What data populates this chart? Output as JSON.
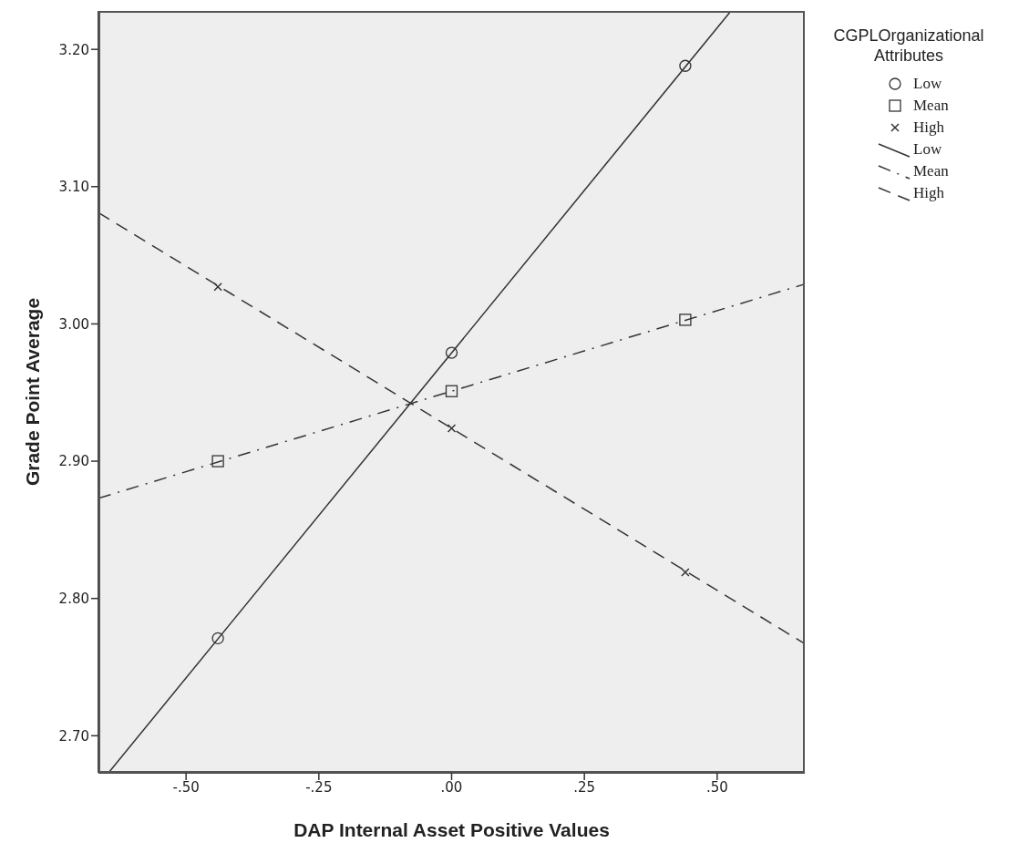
{
  "chart_data": {
    "type": "scatter",
    "xlabel": "DAP Internal Asset Positive Values",
    "ylabel": "Grade Point Average",
    "legend_title": "CGPLOrganizational Attributes",
    "legend": "top right",
    "grid": false,
    "xlim": [
      -0.665,
      0.665
    ],
    "xticks": [
      {
        "value": -0.5,
        "label": "-.50"
      },
      {
        "value": -0.25,
        "label": "-.25"
      },
      {
        "value": 0,
        "label": ".00"
      },
      {
        "value": 0.25,
        "label": ".25"
      },
      {
        "value": 0.5,
        "label": ".50"
      }
    ],
    "ylim": [
      2.673,
      3.228
    ],
    "yticks": [
      {
        "value": 2.7,
        "label": "2.70"
      },
      {
        "value": 2.8,
        "label": "2.80"
      },
      {
        "value": 2.9,
        "label": "2.90"
      },
      {
        "value": 3.0,
        "label": "3.00"
      },
      {
        "value": 3.1,
        "label": "3.10"
      },
      {
        "value": 3.2,
        "label": "3.20"
      }
    ],
    "series": [
      {
        "name": "Low",
        "marker": "circle",
        "color": "#333333",
        "x": [
          -0.44,
          0,
          0.44
        ],
        "values": [
          2.771,
          2.979,
          3.188
        ]
      },
      {
        "name": "Mean",
        "marker": "square",
        "color": "#333333",
        "x": [
          -0.44,
          0,
          0.44
        ],
        "values": [
          2.9,
          2.951,
          3.003
        ]
      },
      {
        "name": "High",
        "marker": "cross",
        "color": "#333333",
        "x": [
          -0.44,
          0,
          0.44
        ],
        "values": [
          3.027,
          2.924,
          2.819
        ]
      },
      {
        "name": "Low",
        "type": "line",
        "marker": "none",
        "line_style": "solid",
        "color": "#333333",
        "x": [
          -0.646,
          0.526
        ],
        "values": [
          2.673,
          3.228
        ]
      },
      {
        "name": "Mean",
        "type": "line",
        "marker": "none",
        "line_style": "dashdot",
        "color": "#333333",
        "x": [
          -0.665,
          0.665
        ],
        "values": [
          2.873,
          3.029
        ]
      },
      {
        "name": "High",
        "type": "line",
        "marker": "none",
        "line_style": "dashed",
        "color": "#333333",
        "x": [
          -0.665,
          0.665
        ],
        "values": [
          3.081,
          2.767
        ]
      }
    ]
  }
}
